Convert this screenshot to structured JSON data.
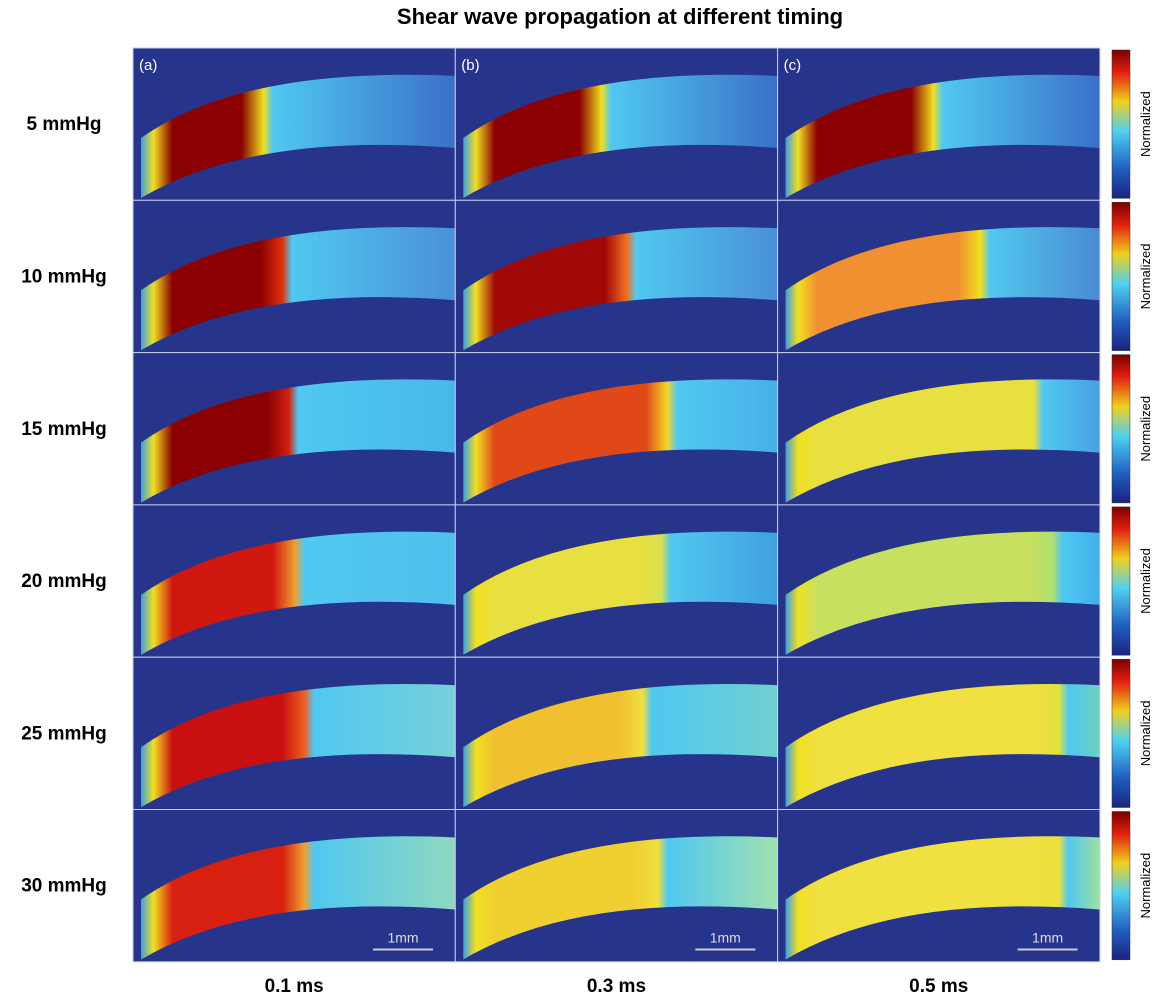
{
  "figure": {
    "title": "Shear wave propagation at different timing",
    "row_labels": [
      "5 mmHg",
      "10 mmHg",
      "15 mmHg",
      "20 mmHg",
      "25 mmHg",
      "30 mmHg"
    ],
    "column_labels": [
      "0.1 ms",
      "0.3 ms",
      "0.5 ms"
    ],
    "panel_labels": [
      "(a)",
      "(b)",
      "(c)"
    ],
    "colorbar_label": "Normalized",
    "scale_bar_label": "1mm"
  }
}
